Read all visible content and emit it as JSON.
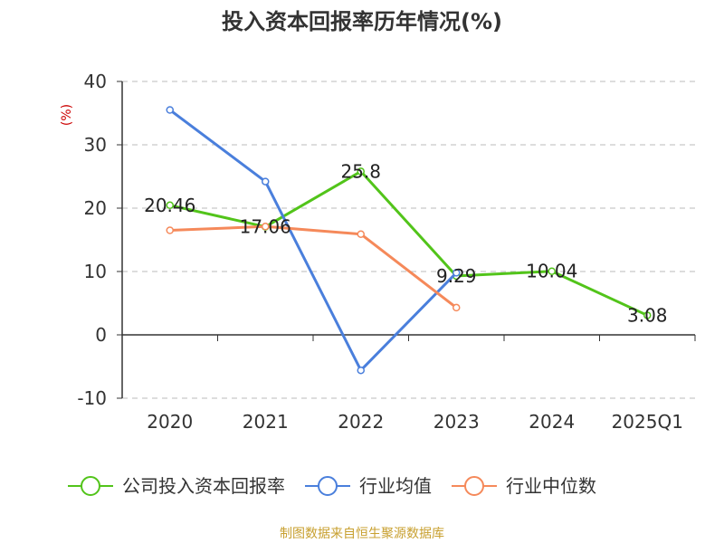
{
  "chart_data": {
    "type": "line",
    "title": "投入资本回报率历年情况(%)",
    "ylabel": "(%)",
    "xlabel": "",
    "categories": [
      "2020",
      "2021",
      "2022",
      "2023",
      "2024",
      "2025Q1"
    ],
    "ylim": [
      -10,
      40
    ],
    "yticks": [
      -10,
      0,
      10,
      20,
      30,
      40
    ],
    "grid": true,
    "legend_position": "bottom",
    "series": [
      {
        "name": "公司投入资本回报率",
        "color": "#52c41a",
        "values": [
          20.46,
          17.06,
          25.8,
          9.29,
          10.04,
          3.08
        ],
        "labels": [
          "20.46",
          "17.06",
          "25.8",
          "9.29",
          "10.04",
          "3.08"
        ]
      },
      {
        "name": "行业均值",
        "color": "#4a7fdc",
        "values": [
          35.5,
          24.2,
          -5.6,
          9.8,
          null,
          null
        ]
      },
      {
        "name": "行业中位数",
        "color": "#f5895a",
        "values": [
          16.5,
          17.1,
          15.9,
          4.3,
          null,
          null
        ]
      }
    ]
  },
  "source": "制图数据来自恒生聚源数据库"
}
